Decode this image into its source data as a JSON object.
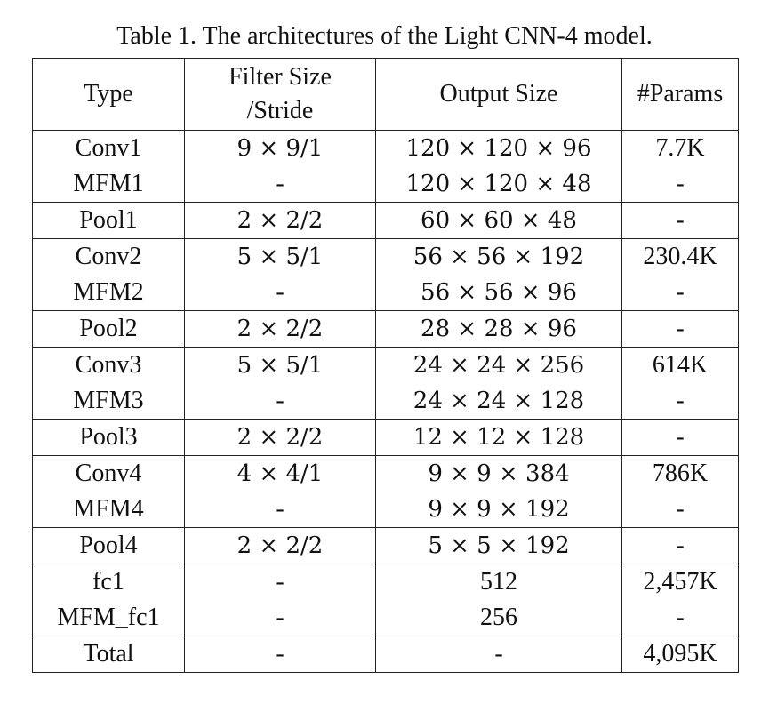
{
  "caption": "Table 1. The architectures of the Light CNN-4 model.",
  "headers": [
    "Type",
    "Filter Size\n/Stride",
    "Output Size",
    "#Params"
  ],
  "rows": [
    {
      "type": "Conv1",
      "filter": "9 × 9/1",
      "output": "120 × 120 × 96",
      "params": "7.7K",
      "sep": true
    },
    {
      "type": "MFM1",
      "filter": "-",
      "output": "120 × 120 × 48",
      "params": "-",
      "sep": false
    },
    {
      "type": "Pool1",
      "filter": "2 × 2/2",
      "output": "60 × 60 × 48",
      "params": "-",
      "sep": true
    },
    {
      "type": "Conv2",
      "filter": "5 × 5/1",
      "output": "56 × 56 × 192",
      "params": "230.4K",
      "sep": true
    },
    {
      "type": "MFM2",
      "filter": "-",
      "output": "56 × 56 × 96",
      "params": "-",
      "sep": false
    },
    {
      "type": "Pool2",
      "filter": "2 × 2/2",
      "output": "28 × 28 × 96",
      "params": "-",
      "sep": true
    },
    {
      "type": "Conv3",
      "filter": "5 × 5/1",
      "output": "24 × 24 × 256",
      "params": "614K",
      "sep": true
    },
    {
      "type": "MFM3",
      "filter": "-",
      "output": "24 × 24 × 128",
      "params": "-",
      "sep": false
    },
    {
      "type": "Pool3",
      "filter": "2 × 2/2",
      "output": "12 × 12 × 128",
      "params": "-",
      "sep": true
    },
    {
      "type": "Conv4",
      "filter": "4 × 4/1",
      "output": "9 × 9 × 384",
      "params": "786K",
      "sep": true
    },
    {
      "type": "MFM4",
      "filter": "-",
      "output": "9 × 9 × 192",
      "params": "-",
      "sep": false
    },
    {
      "type": "Pool4",
      "filter": "2 × 2/2",
      "output": "5 × 5 × 192",
      "params": "-",
      "sep": true
    },
    {
      "type": "fc1",
      "filter": "-",
      "output": "512",
      "params": "2,457K",
      "sep": true
    },
    {
      "type": "MFM_fc1",
      "filter": "-",
      "output": "256",
      "params": "-",
      "sep": false
    },
    {
      "type": "Total",
      "filter": "-",
      "output": "-",
      "params": "4,095K",
      "sep": true
    }
  ]
}
